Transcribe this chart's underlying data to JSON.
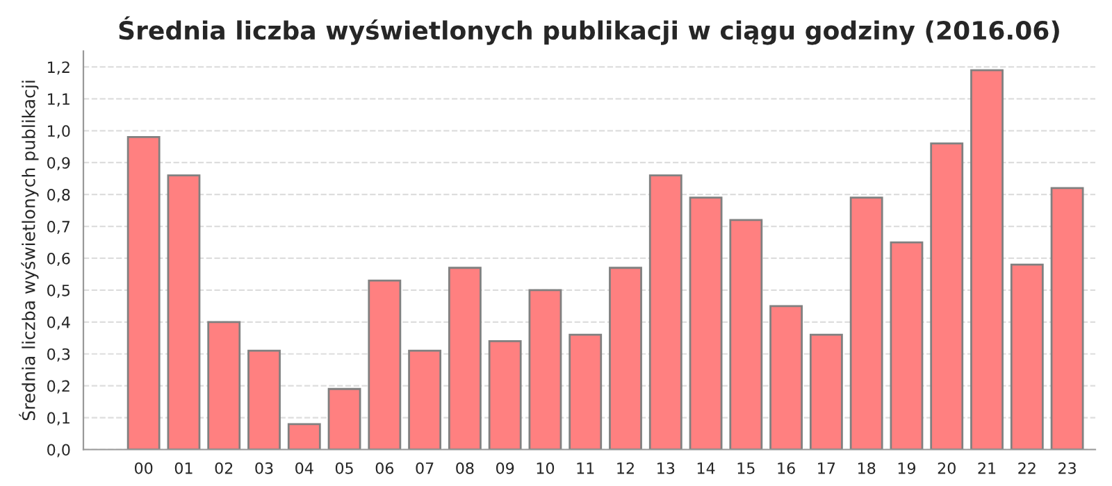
{
  "chart_data": {
    "type": "bar",
    "title": "Średnia liczba wyświetlonych publikacji w ciągu godziny (2016.06)",
    "ylabel": "Średnia liczba wyświetlonych publikacji",
    "categories": [
      "00",
      "01",
      "02",
      "03",
      "04",
      "05",
      "06",
      "07",
      "08",
      "09",
      "10",
      "11",
      "12",
      "13",
      "14",
      "15",
      "16",
      "17",
      "18",
      "19",
      "20",
      "21",
      "22",
      "23"
    ],
    "values": [
      0.98,
      0.86,
      0.4,
      0.31,
      0.08,
      0.19,
      0.53,
      0.31,
      0.57,
      0.34,
      0.5,
      0.36,
      0.57,
      0.86,
      0.79,
      0.72,
      0.45,
      0.36,
      0.79,
      0.65,
      0.96,
      1.19,
      0.58,
      0.82
    ],
    "color": "#ff8080",
    "ylim": [
      0,
      1.25
    ],
    "yticks": [
      {
        "value": 0,
        "label": "0,0"
      },
      {
        "value": 0.1,
        "label": "0,1"
      },
      {
        "value": 0.2,
        "label": "0,2"
      },
      {
        "value": 0.3,
        "label": "0,3"
      },
      {
        "value": 0.4,
        "label": "0,4"
      },
      {
        "value": 0.5,
        "label": "0,5"
      },
      {
        "value": 0.6,
        "label": "0,6"
      },
      {
        "value": 0.7,
        "label": "0,7"
      },
      {
        "value": 0.8,
        "label": "0,8"
      },
      {
        "value": 0.9,
        "label": "0,9"
      },
      {
        "value": 1.0,
        "label": "1,0"
      },
      {
        "value": 1.1,
        "label": "1,1"
      },
      {
        "value": 1.2,
        "label": "1,2"
      }
    ],
    "grid": "y"
  }
}
